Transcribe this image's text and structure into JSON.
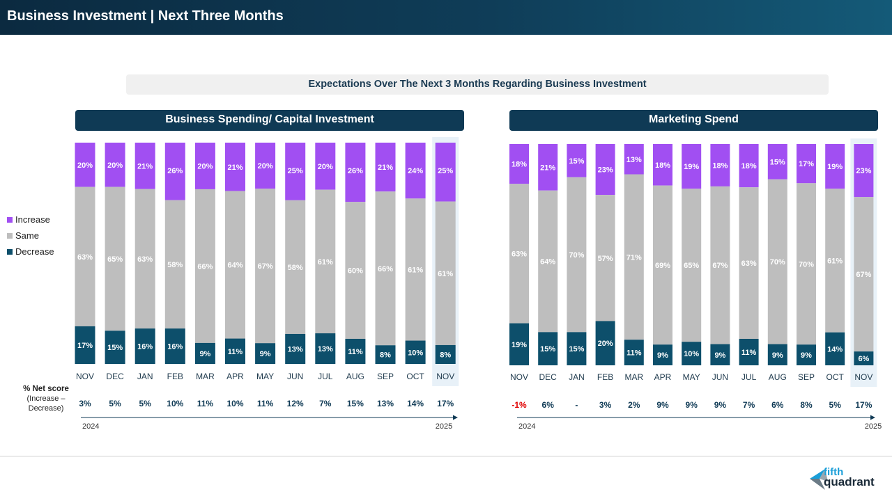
{
  "page": {
    "title": "Business Investment | Next Three Months"
  },
  "subtitle": "Expectations Over The Next 3 Months Regarding Business Investment",
  "legend": [
    {
      "key": "increase",
      "label": "Increase"
    },
    {
      "key": "same",
      "label": "Same"
    },
    {
      "key": "decrease",
      "label": "Decrease"
    }
  ],
  "colors": {
    "increase": "#a14ff2",
    "same": "#bebebe",
    "decrease": "#0d4f6b",
    "highlight": "#e8f1f8",
    "negative": "#e00000",
    "net": "#0f3a55"
  },
  "net_score": {
    "label": "% Net score",
    "sublabel": "(Increase – Decrease)"
  },
  "chart_data": [
    {
      "type": "bar",
      "stacked": true,
      "title": "Business Spending/ Capital Investment",
      "categories": [
        "NOV",
        "DEC",
        "JAN",
        "FEB",
        "MAR",
        "APR",
        "MAY",
        "JUN",
        "JUL",
        "AUG",
        "SEP",
        "OCT",
        "NOV"
      ],
      "series": [
        {
          "name": "Decrease",
          "values": [
            17,
            15,
            16,
            16,
            9,
            11,
            9,
            13,
            13,
            11,
            8,
            10,
            8
          ]
        },
        {
          "name": "Same",
          "values": [
            63,
            65,
            63,
            58,
            66,
            64,
            67,
            58,
            61,
            60,
            66,
            61,
            61
          ]
        },
        {
          "name": "Increase",
          "values": [
            20,
            20,
            21,
            26,
            20,
            21,
            20,
            25,
            20,
            26,
            21,
            24,
            25
          ]
        }
      ],
      "net": [
        "3%",
        "5%",
        "5%",
        "10%",
        "11%",
        "10%",
        "11%",
        "12%",
        "7%",
        "15%",
        "13%",
        "14%",
        "17%"
      ],
      "year_start": "2024",
      "year_end": "2025",
      "highlight_index": 12,
      "ylim": [
        0,
        100
      ]
    },
    {
      "type": "bar",
      "stacked": true,
      "title": "Marketing Spend",
      "categories": [
        "NOV",
        "DEC",
        "JAN",
        "FEB",
        "MAR",
        "APR",
        "MAY",
        "JUN",
        "JUL",
        "AUG",
        "SEP",
        "OCT",
        "NOV"
      ],
      "series": [
        {
          "name": "Decrease",
          "values": [
            19,
            15,
            15,
            20,
            11,
            9,
            10,
            9,
            11,
            9,
            9,
            14,
            6
          ]
        },
        {
          "name": "Same",
          "values": [
            63,
            64,
            70,
            57,
            71,
            69,
            65,
            67,
            63,
            70,
            70,
            61,
            67
          ]
        },
        {
          "name": "Increase",
          "values": [
            18,
            21,
            15,
            23,
            13,
            18,
            19,
            18,
            18,
            15,
            17,
            19,
            23
          ]
        }
      ],
      "net": [
        "-1%",
        "6%",
        "-",
        "3%",
        "2%",
        "9%",
        "9%",
        "9%",
        "7%",
        "6%",
        "8%",
        "5%",
        "17%"
      ],
      "year_start": "2024",
      "year_end": "2025",
      "highlight_index": 12,
      "ylim": [
        0,
        100
      ]
    }
  ],
  "logo": {
    "line1": "fifth",
    "line2": "quadrant"
  }
}
